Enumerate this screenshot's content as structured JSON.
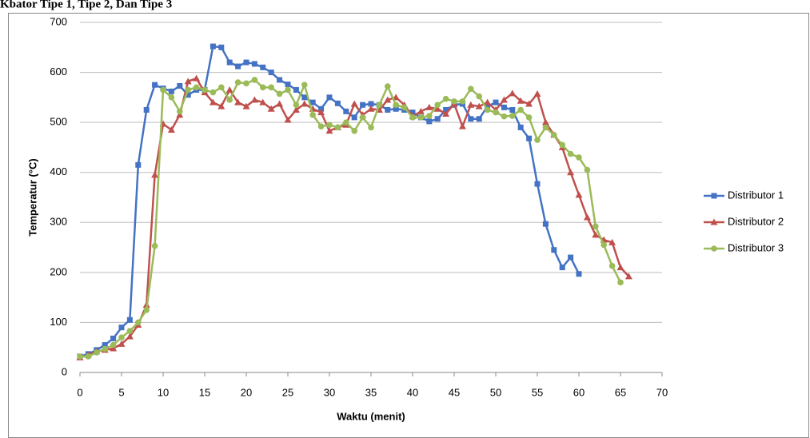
{
  "chart_data": {
    "type": "line",
    "title": "Kbator Tipe 1, Tipe 2, Dan Tipe 3",
    "x_label": "Waktu (menit)",
    "y_label": "Temperatur (°C)",
    "x": [
      0,
      1,
      2,
      3,
      4,
      5,
      6,
      7,
      8,
      9,
      10,
      11,
      12,
      13,
      14,
      15,
      16,
      17,
      18,
      19,
      20,
      21,
      22,
      23,
      24,
      25,
      26,
      27,
      28,
      29,
      30,
      31,
      32,
      33,
      34,
      35,
      36,
      37,
      38,
      39,
      40,
      41,
      42,
      43,
      44,
      45,
      46,
      47,
      48,
      49,
      50,
      51,
      52,
      53,
      54,
      55,
      56,
      57,
      58,
      59,
      60,
      61,
      62,
      63,
      64,
      65,
      66
    ],
    "series": [
      {
        "name": "Distributor 1",
        "color": "#4472c4",
        "marker": "square",
        "values": [
          32,
          37,
          45,
          55,
          68,
          90,
          105,
          415,
          525,
          575,
          568,
          562,
          573,
          555,
          565,
          565,
          652,
          650,
          620,
          612,
          620,
          617,
          610,
          600,
          585,
          576,
          565,
          550,
          540,
          527,
          550,
          538,
          522,
          510,
          535,
          537,
          535,
          525,
          527,
          525,
          520,
          510,
          502,
          507,
          525,
          535,
          537,
          507,
          507,
          532,
          540,
          530,
          525,
          490,
          468,
          377,
          297,
          245,
          210,
          230,
          197,
          null,
          null,
          null,
          null,
          null,
          null
        ]
      },
      {
        "name": "Distributor 2",
        "color": "#c0504d",
        "marker": "triangle",
        "values": [
          30,
          35,
          42,
          45,
          48,
          57,
          72,
          95,
          135,
          395,
          497,
          485,
          515,
          582,
          588,
          560,
          540,
          532,
          565,
          540,
          532,
          545,
          540,
          527,
          537,
          505,
          525,
          537,
          527,
          520,
          483,
          490,
          495,
          537,
          515,
          527,
          525,
          545,
          550,
          535,
          512,
          522,
          530,
          527,
          517,
          537,
          492,
          535,
          532,
          540,
          525,
          545,
          558,
          543,
          537,
          557,
          500,
          475,
          450,
          400,
          355,
          310,
          275,
          265,
          260,
          210,
          192
        ]
      },
      {
        "name": "Distributor 3",
        "color": "#9bbb59",
        "marker": "circle",
        "values": [
          32,
          32,
          40,
          47,
          55,
          70,
          83,
          100,
          125,
          253,
          565,
          550,
          522,
          565,
          570,
          565,
          560,
          570,
          545,
          580,
          578,
          585,
          570,
          570,
          557,
          565,
          535,
          575,
          515,
          492,
          495,
          490,
          500,
          483,
          510,
          490,
          535,
          572,
          535,
          530,
          510,
          510,
          513,
          535,
          547,
          542,
          542,
          567,
          552,
          525,
          520,
          512,
          513,
          525,
          510,
          465,
          490,
          475,
          455,
          437,
          430,
          405,
          292,
          255,
          213,
          180,
          null
        ]
      }
    ],
    "xlim": [
      0,
      70
    ],
    "xticks": [
      0,
      5,
      10,
      15,
      20,
      25,
      30,
      35,
      40,
      45,
      50,
      55,
      60,
      65,
      70
    ],
    "ylim": [
      0,
      700
    ],
    "yticks": [
      0,
      100,
      200,
      300,
      400,
      500,
      600,
      700
    ],
    "grid": true,
    "legend": "right"
  }
}
